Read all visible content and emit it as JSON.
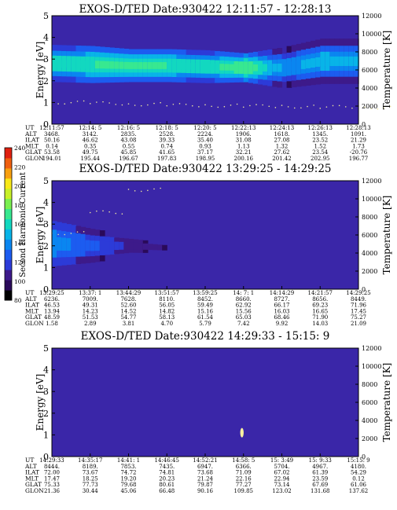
{
  "colorbar": {
    "label": "Second Harmonic Current",
    "ticks": [
      "80",
      "100",
      "120",
      "140",
      "160",
      "180",
      "200",
      "220",
      "240"
    ],
    "colors": [
      "#000000",
      "#2a0a5a",
      "#3d1a8a",
      "#2c3bd8",
      "#1c5cf0",
      "#0a86f0",
      "#08b4e8",
      "#12d8c0",
      "#38e890",
      "#7af050",
      "#c8f028",
      "#f8e818",
      "#f8a010",
      "#f06010",
      "#e02010"
    ]
  },
  "panels": [
    {
      "title": "EXOS-D/TED",
      "date": "Date:930422",
      "time_range": "12:11:57 - 12:28:13",
      "ylabel_left": "Energy [eV]",
      "ylabel_right": "Temperature [K]",
      "yticks_left": [
        "0",
        "1",
        "2",
        "3",
        "4",
        "5"
      ],
      "yticks_right": [
        "0",
        "2000",
        "4000",
        "6000",
        "8000",
        "10000",
        "12000"
      ],
      "rows": [
        {
          "label": "UT",
          "values": [
            "12:11:57",
            "12:14: 5",
            "12:16: 5",
            "12:18: 5",
            "12:20: 5",
            "12:22:13",
            "12:24:13",
            "12:26:13",
            "12:28:13"
          ]
        },
        {
          "label": "ALT",
          "values": [
            "3468.",
            "3142.",
            "2835.",
            "2528.",
            "2224.",
            "1906.",
            "1618.",
            "1345.",
            "1091."
          ]
        },
        {
          "label": "ILAT",
          "values": [
            "50.16",
            "46.62",
            "43.08",
            "39.33",
            "35.40",
            "31.08",
            "27.08",
            "23.52",
            "21.29"
          ]
        },
        {
          "label": "MLT",
          "values": [
            "0.14",
            "0.35",
            "0.55",
            "0.74",
            "0.93",
            "1.13",
            "1.32",
            "1.52",
            "1.73"
          ]
        },
        {
          "label": "GLAT",
          "values": [
            "53.58",
            "49.75",
            "45.85",
            "41.65",
            "37.17",
            "32.21",
            "27.62",
            "23.54",
            "-20.76"
          ]
        },
        {
          "label": "GLON",
          "values": [
            "194.01",
            "195.44",
            "196.67",
            "197.83",
            "198.95",
            "200.16",
            "201.42",
            "202.95",
            "196.77"
          ]
        }
      ]
    },
    {
      "title": "EXOS-D/TED",
      "date": "Date:930422",
      "time_range": "13:29:25 - 14:29:25",
      "ylabel_left": "Energy [eV]",
      "ylabel_right": "Temperature [K]",
      "yticks_left": [
        "0",
        "1",
        "2",
        "3",
        "4",
        "5"
      ],
      "yticks_right": [
        "0",
        "2000",
        "4000",
        "6000",
        "8000",
        "10000",
        "12000"
      ],
      "rows": [
        {
          "label": "UT",
          "values": [
            "13:29:25",
            "13:37: 1",
            "13:44:29",
            "13:51:57",
            "13:59:25",
            "14: 7: 1",
            "14:14:29",
            "14:21:57",
            "14:29:25"
          ]
        },
        {
          "label": "ALT",
          "values": [
            "6236.",
            "7009.",
            "7628.",
            "8110.",
            "8452.",
            "8660.",
            "8727.",
            "8656.",
            "8449."
          ]
        },
        {
          "label": "ILAT",
          "values": [
            "46.53",
            "49.31",
            "52.60",
            "56.05",
            "59.49",
            "62.92",
            "66.17",
            "69.23",
            "71.96"
          ]
        },
        {
          "label": "MLT",
          "values": [
            "13.94",
            "14.23",
            "14.52",
            "14.82",
            "15.16",
            "15.56",
            "16.03",
            "16.65",
            "17.45"
          ]
        },
        {
          "label": "GLAT",
          "values": [
            "48.59",
            "51.53",
            "54.77",
            "58.13",
            "61.54",
            "65.03",
            "68.46",
            "71.90",
            "75.27"
          ]
        },
        {
          "label": "GLON",
          "values": [
            "1.58",
            "2.89",
            "3.81",
            "4.70",
            "5.79",
            "7.42",
            "9.92",
            "14.03",
            "21.09"
          ]
        }
      ]
    },
    {
      "title": "EXOS-D/TED",
      "date": "Date:930422",
      "time_range": "14:29:33 - 15:15: 9",
      "ylabel_left": "Energy [eV]",
      "ylabel_right": "Temperature [K]",
      "yticks_left": [
        "0",
        "1",
        "2",
        "3",
        "4",
        "5"
      ],
      "yticks_right": [
        "0",
        "2000",
        "4000",
        "6000",
        "8000",
        "10000",
        "12000"
      ],
      "rows": [
        {
          "label": "UT",
          "values": [
            "14:29:33",
            "14:35:17",
            "14:41: 1",
            "14:46:45",
            "14:52:21",
            "14:58: 5",
            "15: 3:49",
            "15: 9:33",
            "15:15: 9"
          ]
        },
        {
          "label": "ALT",
          "values": [
            "8444.",
            "8189.",
            "7853.",
            "7435.",
            "6947.",
            "6366.",
            "5704.",
            "4967.",
            "4180."
          ]
        },
        {
          "label": "ILAT",
          "values": [
            "72.00",
            "73.67",
            "74.72",
            "74.81",
            "73.68",
            "71.09",
            "67.02",
            "61.39",
            "54.29"
          ]
        },
        {
          "label": "MLT",
          "values": [
            "17.47",
            "18.25",
            "19.20",
            "20.23",
            "21.24",
            "22.16",
            "22.94",
            "23.59",
            "0.12"
          ]
        },
        {
          "label": "GLAT",
          "values": [
            "75.33",
            "77.73",
            "79.68",
            "80.61",
            "79.87",
            "77.27",
            "73.14",
            "67.69",
            "61.06"
          ]
        },
        {
          "label": "GLON",
          "values": [
            "21.36",
            "30.44",
            "45.06",
            "66.48",
            "90.16",
            "109.85",
            "123.02",
            "131.68",
            "137.62"
          ]
        }
      ]
    }
  ],
  "chart_data": [
    {
      "type": "heatmap",
      "title": "EXOS-D/TED Date:930422 12:11:57 - 12:28:13",
      "ylabel": "Energy [eV]",
      "ylabel_right": "Temperature [K]",
      "ylim": [
        0,
        5
      ],
      "ylim_right": [
        0,
        12000
      ],
      "x": [
        "12:11:57",
        "12:14: 5",
        "12:16: 5",
        "12:18: 5",
        "12:20: 5",
        "12:22:13",
        "12:24:13",
        "12:26:13",
        "12:28:13"
      ],
      "peak_energy_eV": [
        2.8,
        2.75,
        2.7,
        2.7,
        2.65,
        2.6,
        2.6,
        2.9,
        2.9
      ],
      "peak_level": [
        160,
        165,
        170,
        165,
        160,
        175,
        140,
        150,
        145
      ],
      "band_halfwidth_eV": [
        0.45,
        0.45,
        0.4,
        0.4,
        0.4,
        0.35,
        0.5,
        0.55,
        0.55
      ],
      "temperature_K": [
        2400,
        2300,
        2200,
        2100,
        2050,
        2000,
        1950,
        1900,
        1850
      ]
    },
    {
      "type": "heatmap",
      "title": "EXOS-D/TED Date:930422 13:29:25 - 14:29:25",
      "ylabel": "Energy [eV]",
      "ylabel_right": "Temperature [K]",
      "ylim": [
        0,
        5
      ],
      "ylim_right": [
        0,
        12000
      ],
      "x": [
        "13:29:25",
        "13:37: 1",
        "13:44:29",
        "13:51:57",
        "13:59:25",
        "14: 7: 1",
        "14:14:29",
        "14:21:57",
        "14:29:25"
      ],
      "peak_energy_eV": [
        2.1,
        2.0,
        2.0,
        1.9,
        1.9,
        1.9,
        1.9,
        1.9,
        1.9
      ],
      "peak_level": [
        140,
        125,
        110,
        100,
        100,
        100,
        100,
        100,
        100
      ],
      "band_halfwidth_eV": [
        0.8,
        0.6,
        0.4,
        0.3,
        0.3,
        0.3,
        0.3,
        0.3,
        0.3
      ],
      "temperature_K": [
        6200,
        8500,
        11000,
        null,
        null,
        null,
        null,
        null,
        null
      ]
    },
    {
      "type": "heatmap",
      "title": "EXOS-D/TED Date:930422 14:29:33 - 15:15: 9",
      "ylabel": "Energy [eV]",
      "ylabel_right": "Temperature [K]",
      "ylim": [
        0,
        5
      ],
      "ylim_right": [
        0,
        12000
      ],
      "x": [
        "14:29:33",
        "14:35:17",
        "14:41: 1",
        "14:46:45",
        "14:52:21",
        "14:58: 5",
        "15: 3:49",
        "15: 9:33",
        "15:15: 9"
      ],
      "peak_energy_eV": [
        1.9,
        1.9,
        1.9,
        1.9,
        1.9,
        1.9,
        1.9,
        1.9,
        1.9
      ],
      "peak_level": [
        100,
        100,
        100,
        100,
        100,
        100,
        100,
        100,
        100
      ],
      "band_halfwidth_eV": [
        0.3,
        0.3,
        0.3,
        0.3,
        0.3,
        0.3,
        0.3,
        0.3,
        0.3
      ],
      "spot_energy_eV": [
        1.1
      ],
      "spot_time": [
        "14:58: 5"
      ]
    }
  ]
}
